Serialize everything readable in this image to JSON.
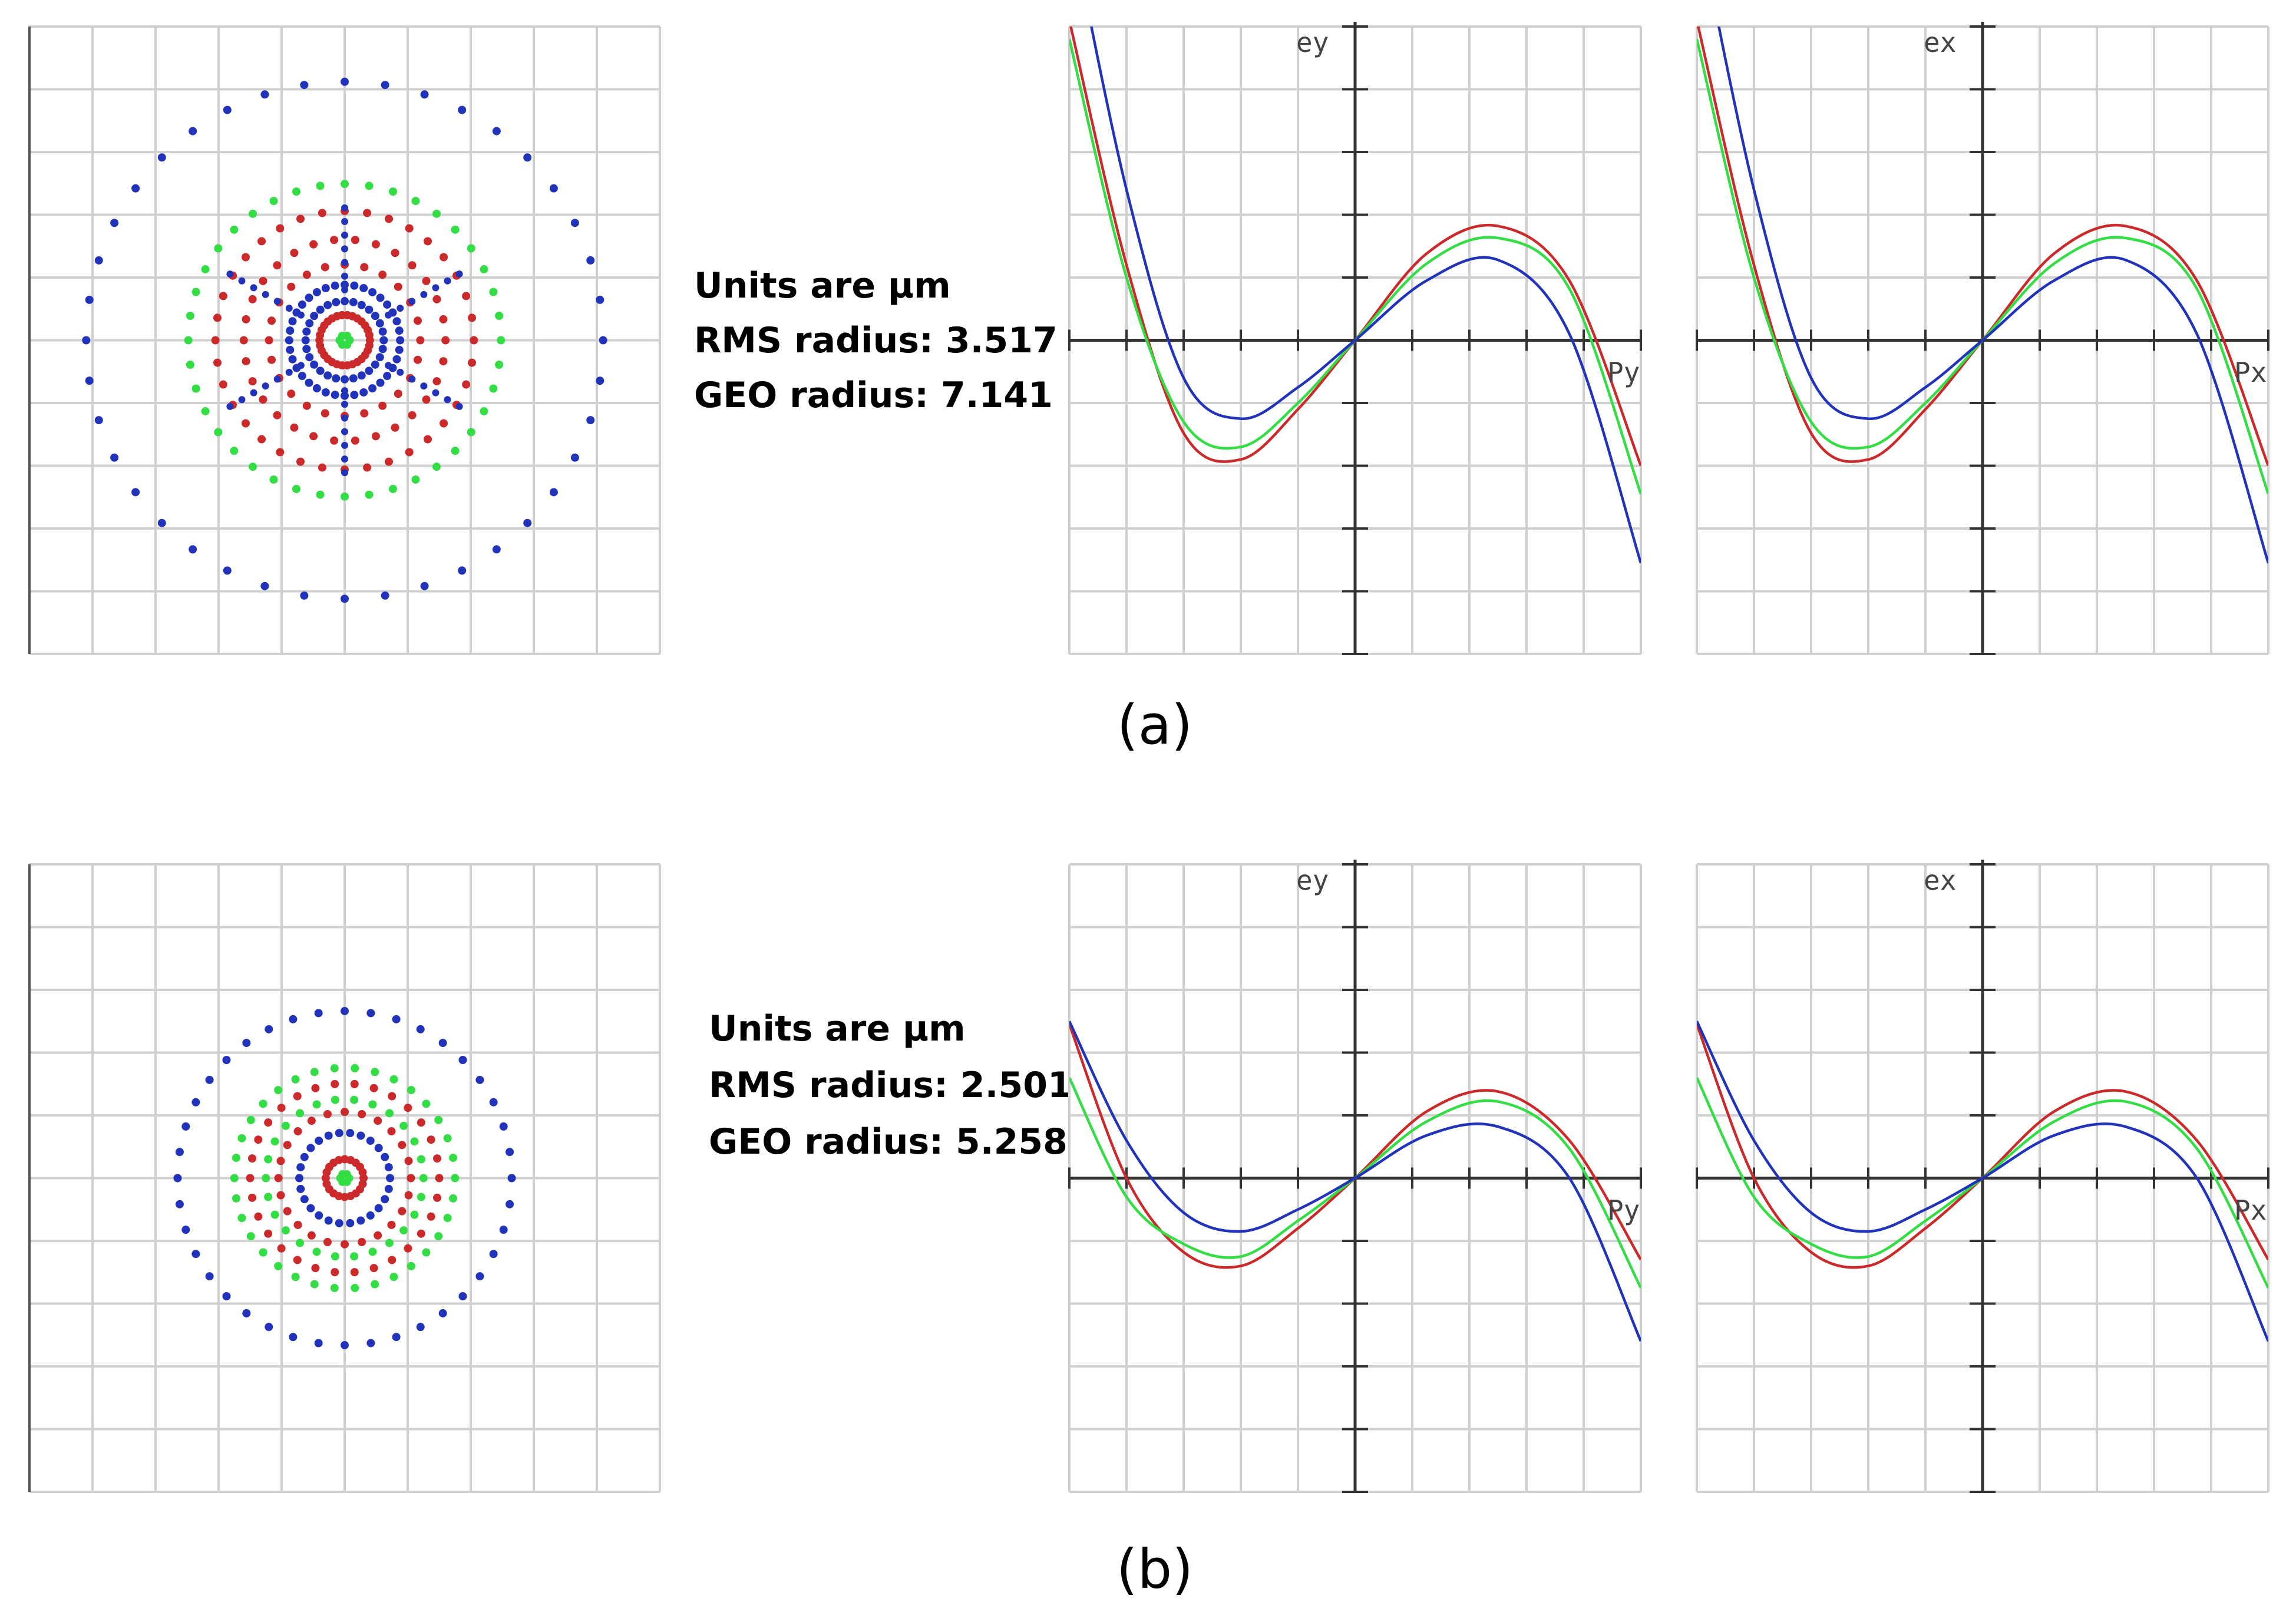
{
  "colors": {
    "grid": "#d0d0d0",
    "axis": "#333333",
    "red": "#cc2a2a",
    "green": "#33dd44",
    "blue": "#2233bb"
  },
  "panels": [
    {
      "label": "(a)",
      "stats": {
        "units": "Units are µm",
        "rms": "RMS radius: 3.517",
        "geo": "GEO radius: 7.141"
      },
      "fan_labels": {
        "tangential_y": "ey",
        "tangential_x": "Py",
        "sagittal_y": "ex",
        "sagittal_x": "Px"
      }
    },
    {
      "label": "(b)",
      "stats": {
        "units": "Units are µm",
        "rms": "RMS radius: 2.501",
        "geo": "GEO radius: 5.258"
      },
      "fan_labels": {
        "tangential_y": "ey",
        "tangential_x": "Py",
        "sagittal_y": "ex",
        "sagittal_x": "Px"
      }
    }
  ],
  "chart_data": [
    {
      "type": "scatter",
      "title": "",
      "panel": "(a)",
      "plot": "spot diagram",
      "grid": true,
      "rings": [
        {
          "color": "blue",
          "radius": 4.1,
          "points": 40
        },
        {
          "color": "green",
          "radius": 2.48,
          "points": 40
        },
        {
          "color": "red",
          "radius": 2.05,
          "points": 36
        },
        {
          "color": "red",
          "radius": 1.6,
          "points": 30
        },
        {
          "color": "red",
          "radius": 1.2,
          "points": 24
        },
        {
          "color": "blue",
          "radius": 0.88,
          "points": 36
        },
        {
          "color": "blue",
          "radius": 0.62,
          "points": 28
        },
        {
          "color": "red",
          "radius": 0.4,
          "points": 30
        },
        {
          "color": "green",
          "radius": 0.08,
          "points": 6
        }
      ],
      "spokes": {
        "color": "blue",
        "inner": 0.8,
        "outer": 2.1,
        "directions": 6
      }
    },
    {
      "type": "line",
      "title": "",
      "panel": "(a)",
      "plot": "tangential ray fan",
      "xlabel": "Py",
      "ylabel": "ey",
      "xlim": [
        -1,
        1
      ],
      "ylim": [
        -5,
        5
      ],
      "grid": true,
      "series": [
        {
          "color": "red",
          "values": [
            5.1,
            1.2,
            -1.48,
            -1.9,
            -1.1,
            0,
            1.38,
            1.82,
            0.95,
            -2.0
          ]
        },
        {
          "color": "green",
          "values": [
            4.8,
            1.0,
            -1.3,
            -1.7,
            -1.0,
            0,
            1.22,
            1.63,
            0.82,
            -2.45
          ]
        },
        {
          "color": "blue",
          "values": [
            6.75,
            2.4,
            -0.6,
            -1.25,
            -0.75,
            0,
            0.95,
            1.28,
            0.1,
            -3.55
          ]
        }
      ],
      "x": [
        -1,
        -0.8,
        -0.6,
        -0.4,
        -0.2,
        0,
        0.25,
        0.5,
        0.75,
        1
      ]
    },
    {
      "type": "line",
      "title": "",
      "panel": "(a)",
      "plot": "sagittal ray fan",
      "xlabel": "Px",
      "ylabel": "ex",
      "xlim": [
        -1,
        1
      ],
      "ylim": [
        -5,
        5
      ],
      "grid": true,
      "series": [
        {
          "color": "red",
          "values": [
            5.1,
            1.2,
            -1.48,
            -1.9,
            -1.1,
            0,
            1.38,
            1.82,
            0.95,
            -2.0
          ]
        },
        {
          "color": "green",
          "values": [
            4.8,
            1.0,
            -1.3,
            -1.7,
            -1.0,
            0,
            1.22,
            1.63,
            0.82,
            -2.45
          ]
        },
        {
          "color": "blue",
          "values": [
            6.75,
            2.4,
            -0.6,
            -1.25,
            -0.75,
            0,
            0.95,
            1.28,
            0.1,
            -3.55
          ]
        }
      ],
      "x": [
        -1,
        -0.8,
        -0.6,
        -0.4,
        -0.2,
        0,
        0.25,
        0.5,
        0.75,
        1
      ]
    },
    {
      "type": "scatter",
      "title": "",
      "panel": "(b)",
      "plot": "spot diagram",
      "grid": true,
      "rings": [
        {
          "color": "blue",
          "radius": 2.65,
          "points": 40
        },
        {
          "color": "green",
          "radius": 1.75,
          "points": 34
        },
        {
          "color": "red",
          "radius": 1.5,
          "points": 30
        },
        {
          "color": "green",
          "radius": 1.25,
          "points": 26
        },
        {
          "color": "red",
          "radius": 1.05,
          "points": 24
        },
        {
          "color": "blue",
          "radius": 0.72,
          "points": 26
        },
        {
          "color": "red",
          "radius": 0.3,
          "points": 20
        },
        {
          "color": "green",
          "radius": 0.07,
          "points": 6
        }
      ]
    },
    {
      "type": "line",
      "title": "",
      "panel": "(b)",
      "plot": "tangential ray fan",
      "xlabel": "Py",
      "ylabel": "ey",
      "xlim": [
        -1,
        1
      ],
      "ylim": [
        -5,
        5
      ],
      "grid": true,
      "series": [
        {
          "color": "red",
          "values": [
            2.45,
            0.0,
            -1.18,
            -1.4,
            -0.8,
            0,
            1.06,
            1.38,
            0.6,
            -1.3
          ]
        },
        {
          "color": "green",
          "values": [
            1.6,
            -0.3,
            -1.05,
            -1.25,
            -0.68,
            0,
            0.9,
            1.22,
            0.47,
            -1.75
          ]
        },
        {
          "color": "blue",
          "values": [
            2.5,
            0.6,
            -0.55,
            -0.85,
            -0.5,
            0,
            0.68,
            0.82,
            0.0,
            -2.6
          ]
        }
      ],
      "x": [
        -1,
        -0.8,
        -0.6,
        -0.4,
        -0.2,
        0,
        0.25,
        0.5,
        0.75,
        1
      ]
    },
    {
      "type": "line",
      "title": "",
      "panel": "(b)",
      "plot": "sagittal ray fan",
      "xlabel": "Px",
      "ylabel": "ex",
      "xlim": [
        -1,
        1
      ],
      "ylim": [
        -5,
        5
      ],
      "grid": true,
      "series": [
        {
          "color": "red",
          "values": [
            2.45,
            0.0,
            -1.18,
            -1.4,
            -0.8,
            0,
            1.06,
            1.38,
            0.6,
            -1.3
          ]
        },
        {
          "color": "green",
          "values": [
            1.6,
            -0.3,
            -1.05,
            -1.25,
            -0.68,
            0,
            0.9,
            1.22,
            0.47,
            -1.75
          ]
        },
        {
          "color": "blue",
          "values": [
            2.5,
            0.6,
            -0.55,
            -0.85,
            -0.5,
            0,
            0.68,
            0.82,
            0.0,
            -2.6
          ]
        }
      ],
      "x": [
        -1,
        -0.8,
        -0.6,
        -0.4,
        -0.2,
        0,
        0.25,
        0.5,
        0.75,
        1
      ]
    }
  ]
}
